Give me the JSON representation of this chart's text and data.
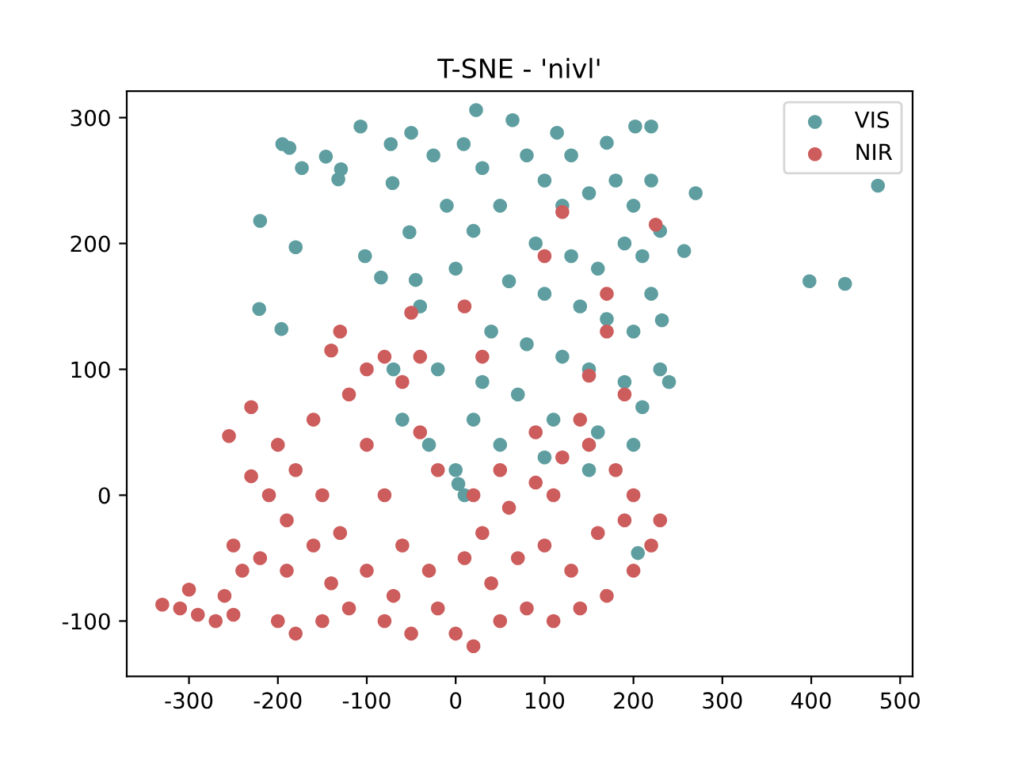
{
  "chart_data": {
    "type": "scatter",
    "title": "T-SNE - 'nivl'",
    "xlim": [
      -370,
      514
    ],
    "ylim": [
      -144,
      321
    ],
    "xticks": [
      -300,
      -200,
      -100,
      0,
      100,
      200,
      300,
      400,
      500
    ],
    "yticks": [
      -100,
      0,
      100,
      200,
      300
    ],
    "legend": "top right",
    "marker": "circle",
    "grid": false,
    "series": [
      {
        "name": "VIS",
        "color": "#5f9ea0",
        "x": [
          23,
          -107,
          -195,
          -187,
          -173,
          -146,
          -132,
          -129,
          -220,
          -180,
          -221,
          -196,
          -73,
          -50,
          -25,
          -71,
          -102,
          -84,
          -52,
          -45,
          9,
          64,
          114,
          202,
          220,
          270,
          257,
          232,
          205,
          3,
          475,
          398,
          438,
          100,
          120,
          150,
          180,
          200,
          90,
          130,
          160,
          190,
          210,
          60,
          100,
          140,
          170,
          200,
          40,
          80,
          120,
          150,
          190,
          210,
          30,
          70,
          110,
          160,
          200,
          20,
          50,
          100,
          150,
          -20,
          -40,
          0,
          20,
          50,
          -10,
          30,
          80,
          130,
          170,
          220,
          230,
          220,
          230,
          240,
          -60,
          -30,
          0,
          10,
          -70
        ],
        "values": [
          306,
          293,
          279,
          276,
          260,
          269,
          251,
          259,
          218,
          197,
          148,
          132,
          279,
          288,
          270,
          248,
          190,
          173,
          209,
          171,
          279,
          298,
          288,
          293,
          293,
          240,
          194,
          139,
          -46,
          9,
          246,
          170,
          168,
          250,
          230,
          240,
          250,
          230,
          200,
          190,
          180,
          200,
          190,
          170,
          160,
          150,
          140,
          130,
          130,
          120,
          110,
          100,
          90,
          70,
          90,
          80,
          60,
          50,
          40,
          60,
          40,
          30,
          20,
          100,
          150,
          180,
          210,
          230,
          230,
          260,
          270,
          270,
          280,
          250,
          210,
          160,
          100,
          90,
          60,
          40,
          20,
          0,
          100
        ]
      },
      {
        "name": "NIR",
        "color": "#cd5c5c",
        "x": [
          120,
          100,
          170,
          170,
          150,
          190,
          225,
          90,
          140,
          -40,
          -50,
          -140,
          -130,
          10,
          30,
          -230,
          -255,
          -230,
          -330,
          -310,
          -290,
          -270,
          -250,
          -300,
          -260,
          -240,
          -220,
          -250,
          -200,
          -180,
          -150,
          -200,
          -180,
          -160,
          -150,
          -130,
          -120,
          -100,
          -80,
          -60,
          -40,
          -20,
          -100,
          -80,
          -60,
          -100,
          -140,
          -160,
          -190,
          -120,
          -80,
          -50,
          -20,
          -30,
          -70,
          -190,
          -210,
          0,
          20,
          50,
          80,
          110,
          140,
          170,
          200,
          220,
          230,
          200,
          180,
          150,
          120,
          90,
          60,
          30,
          40,
          70,
          100,
          130,
          160,
          190,
          110,
          50,
          20,
          10
        ],
        "values": [
          225,
          190,
          160,
          130,
          95,
          80,
          215,
          50,
          60,
          110,
          145,
          115,
          130,
          150,
          110,
          70,
          47,
          15,
          -87,
          -90,
          -95,
          -100,
          -95,
          -75,
          -80,
          -60,
          -50,
          -40,
          -100,
          -110,
          -100,
          40,
          20,
          60,
          0,
          -30,
          80,
          100,
          110,
          90,
          50,
          20,
          40,
          0,
          -40,
          -60,
          -70,
          -40,
          -20,
          -90,
          -100,
          -110,
          -90,
          -60,
          -80,
          -60,
          0,
          -110,
          -120,
          -100,
          -90,
          -100,
          -90,
          -80,
          -60,
          -40,
          -20,
          0,
          20,
          40,
          30,
          10,
          -10,
          -30,
          -70,
          -50,
          -40,
          -60,
          -30,
          -20,
          0,
          20,
          0,
          -50
        ]
      }
    ]
  }
}
